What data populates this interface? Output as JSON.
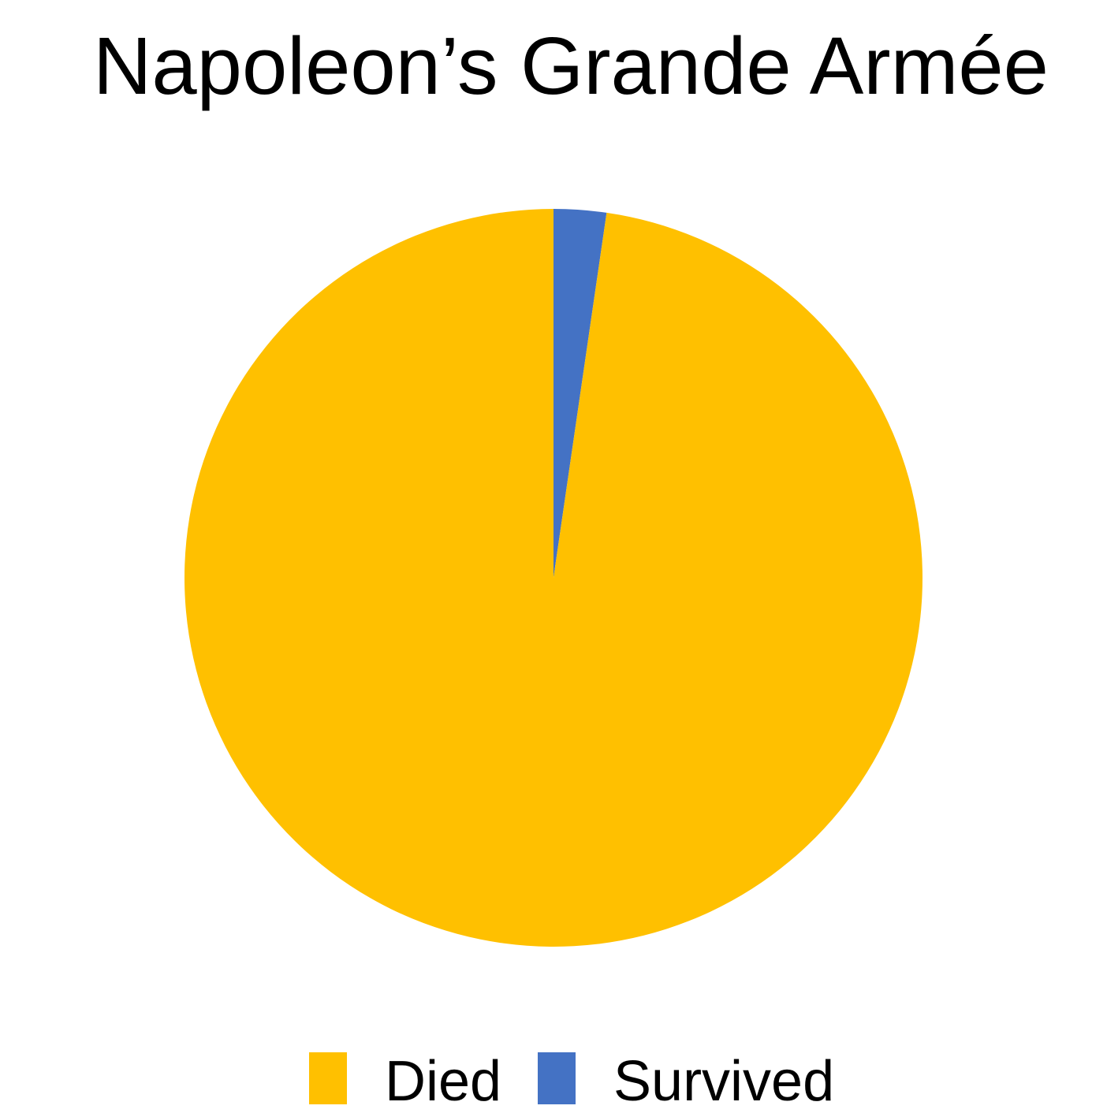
{
  "chart_data": {
    "type": "pie",
    "title": "Napoleon’s Grande Armée",
    "legend_position": "bottom",
    "start_angle_deg": 0,
    "direction": "clockwise",
    "order": "Survived drawn first from 12 o'clock, Died fills the remainder",
    "slices": [
      {
        "label": "Died",
        "value": 97.7,
        "color": "#FFC000"
      },
      {
        "label": "Survived",
        "value": 2.3,
        "color": "#4472C4"
      }
    ]
  }
}
